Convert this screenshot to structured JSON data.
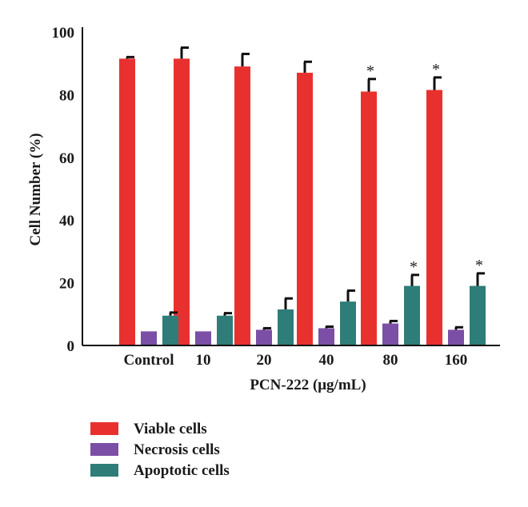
{
  "chart_data": {
    "type": "bar",
    "ylabel": "Cell Number (%)",
    "xlabel": "PCN-222 (μg/mL)",
    "ylim": [
      0,
      100
    ],
    "yticks": [
      0,
      20,
      40,
      60,
      80,
      100
    ],
    "categories": [
      "Control",
      "10",
      "20",
      "40",
      "80",
      "160"
    ],
    "series": [
      {
        "name": "Viable cells",
        "color": "#e8312f",
        "values": [
          91.5,
          91.5,
          89.0,
          87.0,
          81.0,
          81.5
        ],
        "errors": [
          0.5,
          3.5,
          4.0,
          3.5,
          4.0,
          4.0
        ],
        "significant": [
          false,
          false,
          false,
          false,
          true,
          true
        ]
      },
      {
        "name": "Necrosis cells",
        "color": "#7b4fa6",
        "values": [
          4.5,
          4.5,
          5.0,
          5.5,
          7.0,
          5.0
        ],
        "errors": [
          0.0,
          0.0,
          0.5,
          0.5,
          0.8,
          0.8
        ],
        "significant": [
          false,
          false,
          false,
          false,
          false,
          false
        ]
      },
      {
        "name": "Apoptotic cells",
        "color": "#2e7d78",
        "values": [
          9.5,
          9.5,
          11.5,
          14.0,
          19.0,
          19.0
        ],
        "errors": [
          1.0,
          0.8,
          3.5,
          3.5,
          3.5,
          4.0
        ],
        "significant": [
          false,
          false,
          false,
          false,
          true,
          true
        ]
      }
    ],
    "significance_marker": "*",
    "grid": false,
    "legend_position": "bottom-left"
  }
}
